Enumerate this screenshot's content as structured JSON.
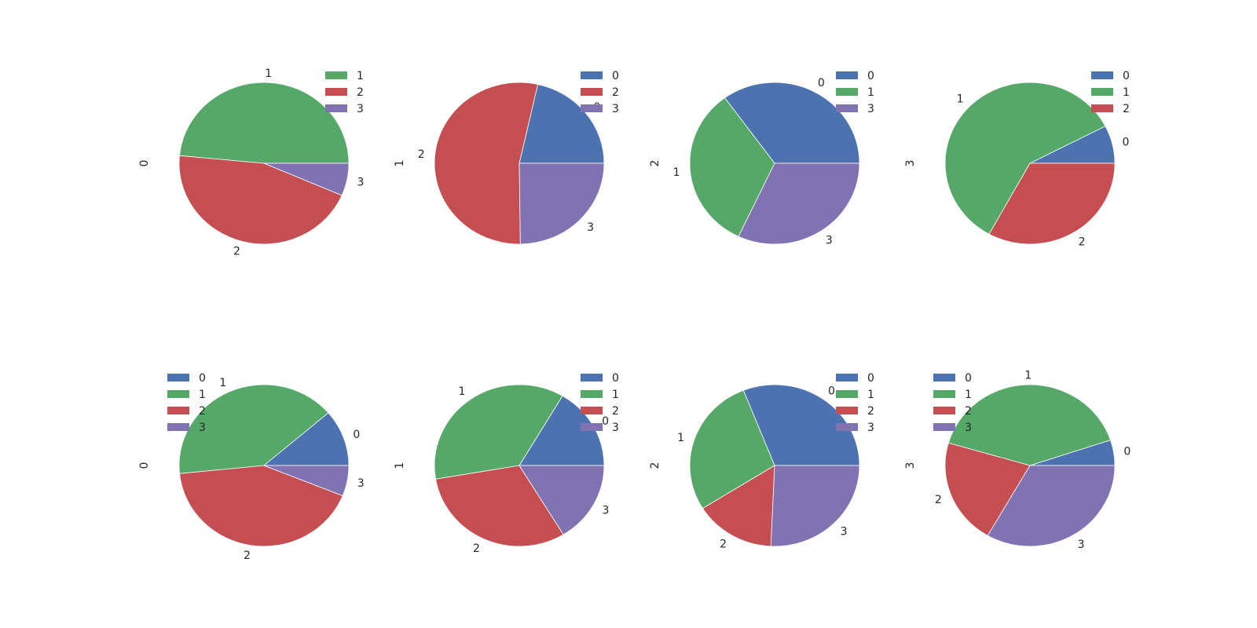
{
  "colors": {
    "0": "#4C72B0",
    "1": "#55A868",
    "2": "#C44E52",
    "3": "#8172B2"
  },
  "chart_data": [
    {
      "type": "pie",
      "ylabel": "0",
      "labels": [
        "1",
        "2",
        "3"
      ],
      "values": [
        48.5,
        45.0,
        6.5
      ],
      "legend": "top-right"
    },
    {
      "type": "pie",
      "ylabel": "1",
      "labels": [
        "0",
        "2",
        "3"
      ],
      "values": [
        21.5,
        53.7,
        24.8
      ],
      "legend": "top-right"
    },
    {
      "type": "pie",
      "ylabel": "2",
      "labels": [
        "0",
        "1",
        "3"
      ],
      "values": [
        35.0,
        33.0,
        32.0
      ],
      "legend": "top-right"
    },
    {
      "type": "pie",
      "ylabel": "3",
      "labels": [
        "0",
        "1",
        "2"
      ],
      "values": [
        7.6,
        59.4,
        33.0
      ],
      "legend": "top-right"
    },
    {
      "type": "pie",
      "ylabel": "0",
      "labels": [
        "0",
        "1",
        "2",
        "3"
      ],
      "values": [
        11.3,
        40.3,
        42.3,
        6.1
      ],
      "legend": "top-left"
    },
    {
      "type": "pie",
      "ylabel": "1",
      "labels": [
        "0",
        "1",
        "2",
        "3"
      ],
      "values": [
        16.5,
        36.2,
        31.0,
        16.3
      ],
      "legend": "top-right"
    },
    {
      "type": "pie",
      "ylabel": "2",
      "labels": [
        "0",
        "1",
        "2",
        "3"
      ],
      "values": [
        31.0,
        27.9,
        15.4,
        25.7
      ],
      "legend": "top-right"
    },
    {
      "type": "pie",
      "ylabel": "3",
      "labels": [
        "0",
        "1",
        "2",
        "3"
      ],
      "values": [
        5.1,
        40.4,
        21.2,
        33.3
      ],
      "legend": "top-left"
    }
  ]
}
